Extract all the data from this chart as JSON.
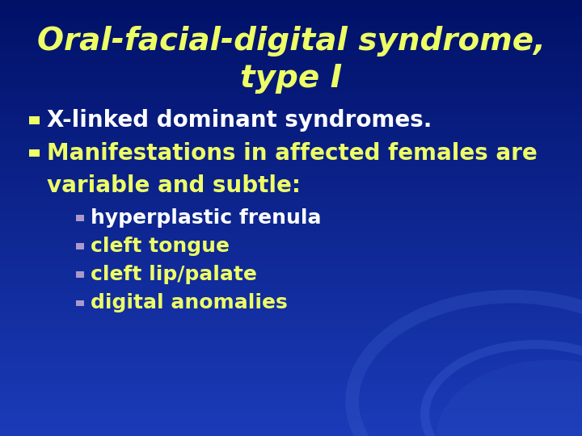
{
  "title_line1": "Oral-facial-digital syndrome,",
  "title_line2": "type I",
  "title_color": "#EEFF66",
  "title_fontsize": 28,
  "bg_color": "#1a3ab8",
  "bg_top_color": "#001166",
  "bullet_marker_color": "#EEFF66",
  "bullet1_text": "X-linked dominant syndromes.",
  "bullet1_color": "#ffffff",
  "bullet2_line1": "Manifestations in affected females are",
  "bullet2_line2": "variable and subtle:",
  "bullet2_color": "#EEFF66",
  "sub_items": [
    "hyperplastic frenula",
    "cleft tongue",
    "cleft lip/palate",
    "digital anomalies"
  ],
  "sub_item_colors": [
    "#ffffff",
    "#EEFF66",
    "#EEFF66",
    "#EEFF66"
  ],
  "sub_marker_color": "#aa99cc",
  "bullet_fontsize": 20,
  "sub_fontsize": 18,
  "wave_color": "#2a5ad0",
  "wave_color2": "#3060d8"
}
